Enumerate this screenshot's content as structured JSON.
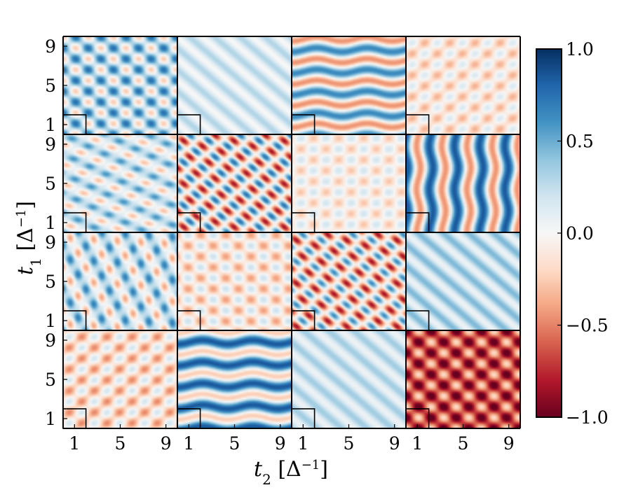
{
  "chart_data": {
    "type": "heatmap",
    "layout": "4x4 grid of panels",
    "xlabel": "t_2 [Δ^-1]",
    "ylabel": "t_1 [Δ^-1]",
    "xlabel_parts": {
      "var": "t",
      "sub": "2",
      "unit_open": " [Δ",
      "sup": "−1",
      "unit_close": "]"
    },
    "ylabel_parts": {
      "var": "t",
      "sub": "1",
      "unit_open": " [Δ",
      "sup": "−1",
      "unit_close": "]"
    },
    "x_ticks": [
      1,
      5,
      9
    ],
    "y_ticks": [
      1,
      5,
      9
    ],
    "x_tick_labels": [
      "1",
      "5",
      "9"
    ],
    "y_tick_labels": [
      "1",
      "5",
      "9"
    ],
    "xlim": [
      0,
      10
    ],
    "ylim": [
      0,
      10
    ],
    "colorbar": {
      "range": [
        -1.0,
        1.0
      ],
      "ticks": [
        1.0,
        0.5,
        0.0,
        -0.5,
        -1.0
      ],
      "tick_labels": [
        "1.0",
        "0.5",
        "0.0",
        "−0.5",
        "−1.0"
      ],
      "colormap": "RdBu",
      "colors": [
        "#67001f",
        "#b2182b",
        "#d6604d",
        "#f4a582",
        "#fddbc7",
        "#f7f7f7",
        "#d1e5f0",
        "#92c5de",
        "#4393c3",
        "#2166ac",
        "#053061"
      ]
    },
    "inset_box": {
      "t_max": 2
    },
    "panels": [
      {
        "row": 1,
        "col": 1,
        "pattern": "grid",
        "ax": 0.4,
        "ay": 0.4,
        "amp": 0.45,
        "bias": 0.25,
        "phase": 0
      },
      {
        "row": 1,
        "col": 2,
        "pattern": "diagonal",
        "ax": 0.45,
        "ay": 0.45,
        "amp": 0.15,
        "bias": 0.15,
        "phase": 0
      },
      {
        "row": 1,
        "col": 3,
        "pattern": "horizontal-wavy",
        "ax": 0.2,
        "ay": 0.5,
        "amp": 0.55,
        "bias": 0.1,
        "phase": 0.5
      },
      {
        "row": 1,
        "col": 4,
        "pattern": "grid",
        "ax": 0.4,
        "ay": 0.4,
        "amp": 0.3,
        "bias": -0.1,
        "phase": 1.6
      },
      {
        "row": 2,
        "col": 1,
        "pattern": "diagonal-wavy",
        "ax": 0.3,
        "ay": 0.55,
        "amp": 0.45,
        "bias": 0.15,
        "phase": 0
      },
      {
        "row": 2,
        "col": 2,
        "pattern": "diagonal-lobes",
        "ax": 0.35,
        "ay": 0.45,
        "amp": 0.8,
        "bias": -0.05,
        "phase": 0
      },
      {
        "row": 2,
        "col": 3,
        "pattern": "grid",
        "ax": 0.4,
        "ay": 0.4,
        "amp": 0.25,
        "bias": -0.05,
        "phase": 1.0
      },
      {
        "row": 2,
        "col": 4,
        "pattern": "vertical",
        "ax": 0.65,
        "ay": 0.15,
        "amp": 0.65,
        "bias": 0.2,
        "phase": 0
      },
      {
        "row": 3,
        "col": 1,
        "pattern": "diagonal-wavy",
        "ax": 0.55,
        "ay": 0.25,
        "amp": 0.55,
        "bias": 0.15,
        "phase": 0.3
      },
      {
        "row": 3,
        "col": 2,
        "pattern": "grid",
        "ax": 0.4,
        "ay": 0.4,
        "amp": 0.3,
        "bias": -0.1,
        "phase": 0.6
      },
      {
        "row": 3,
        "col": 3,
        "pattern": "diagonal-lobes",
        "ax": 0.35,
        "ay": 0.45,
        "amp": 0.75,
        "bias": -0.1,
        "phase": 0.8
      },
      {
        "row": 3,
        "col": 4,
        "pattern": "diagonal",
        "ax": 0.45,
        "ay": 0.45,
        "amp": 0.2,
        "bias": 0.25,
        "phase": 0
      },
      {
        "row": 4,
        "col": 1,
        "pattern": "grid",
        "ax": 0.4,
        "ay": 0.4,
        "amp": 0.4,
        "bias": -0.15,
        "phase": 1.6
      },
      {
        "row": 4,
        "col": 2,
        "pattern": "horizontal-wavy",
        "ax": 0.15,
        "ay": 0.5,
        "amp": 0.55,
        "bias": 0.3,
        "phase": 0
      },
      {
        "row": 4,
        "col": 3,
        "pattern": "diagonal",
        "ax": 0.45,
        "ay": 0.45,
        "amp": 0.15,
        "bias": 0.2,
        "phase": 0
      },
      {
        "row": 4,
        "col": 4,
        "pattern": "grid",
        "ax": 0.4,
        "ay": 0.4,
        "amp": 0.4,
        "bias": -0.65,
        "phase": 3.14
      }
    ]
  }
}
